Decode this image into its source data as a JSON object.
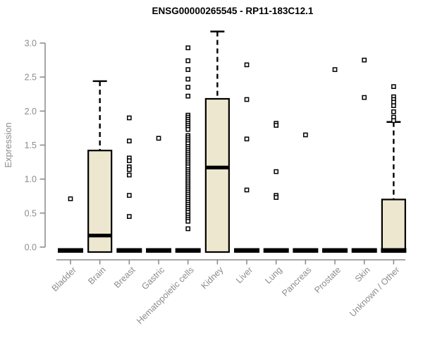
{
  "chart": {
    "title": "ENSG00000265545 - RP11-183C12.1",
    "ylabel": "Expression"
  },
  "chart_data": {
    "type": "boxplot",
    "title": "ENSG00000265545 - RP11-183C12.1",
    "xlabel": "",
    "ylabel": "Expression",
    "ylim": [
      0.0,
      3.2
    ],
    "yticks": [
      0.0,
      0.5,
      1.0,
      1.5,
      2.0,
      2.5,
      3.0
    ],
    "grid": false,
    "legend": "none",
    "categories": [
      "Bladder",
      "Brain",
      "Breast",
      "Gastric",
      "Hematopoietic cells",
      "Kidney",
      "Liver",
      "Lung",
      "Pancreas",
      "Prostate",
      "Skin",
      "Unknown / Other"
    ],
    "boxes": [
      {
        "name": "Bladder",
        "q1": 0,
        "median": 0,
        "q3": 0,
        "whisker_low": 0,
        "whisker_high": 0,
        "outliers": [
          0.71
        ]
      },
      {
        "name": "Brain",
        "q1": 0,
        "median": 0.17,
        "q3": 1.42,
        "whisker_low": 0,
        "whisker_high": 2.44,
        "outliers": []
      },
      {
        "name": "Breast",
        "q1": 0,
        "median": 0,
        "q3": 0,
        "whisker_low": 0,
        "whisker_high": 0,
        "outliers": [
          1.9,
          1.56,
          1.31,
          1.27,
          1.18,
          1.14,
          1.06,
          0.76,
          0.45
        ]
      },
      {
        "name": "Gastric",
        "q1": 0,
        "median": 0,
        "q3": 0,
        "whisker_low": 0,
        "whisker_high": 0,
        "outliers": [
          1.6
        ]
      },
      {
        "name": "Hematopoietic cells",
        "q1": 0,
        "median": 0,
        "q3": 0,
        "whisker_low": 0,
        "whisker_high": 0,
        "outliers": [
          2.93,
          2.74,
          2.61,
          2.47,
          2.35,
          2.22,
          1.94,
          1.91,
          1.88,
          1.85,
          1.82,
          1.79,
          1.76,
          1.73,
          1.64,
          1.61,
          1.58,
          1.55,
          1.52,
          1.48,
          1.45,
          1.42,
          1.39,
          1.36,
          1.33,
          1.3,
          1.27,
          1.24,
          1.21,
          1.18,
          1.14,
          1.11,
          1.08,
          1.05,
          1.02,
          0.99,
          0.96,
          0.93,
          0.9,
          0.87,
          0.84,
          0.81,
          0.78,
          0.75,
          0.72,
          0.69,
          0.66,
          0.63,
          0.6,
          0.57,
          0.54,
          0.51,
          0.47,
          0.44,
          0.41,
          0.38,
          0.27
        ]
      },
      {
        "name": "Kidney",
        "q1": 0,
        "median": 1.17,
        "q3": 2.18,
        "whisker_low": 0,
        "whisker_high": 3.17,
        "outliers": []
      },
      {
        "name": "Liver",
        "q1": 0,
        "median": 0,
        "q3": 0,
        "whisker_low": 0,
        "whisker_high": 0,
        "outliers": [
          2.68,
          2.17,
          1.59,
          0.84
        ]
      },
      {
        "name": "Lung",
        "q1": 0,
        "median": 0,
        "q3": 0,
        "whisker_low": 0,
        "whisker_high": 0,
        "outliers": [
          1.82,
          1.79,
          1.11,
          0.76,
          0.73
        ]
      },
      {
        "name": "Pancreas",
        "q1": 0,
        "median": 0,
        "q3": 0,
        "whisker_low": 0,
        "whisker_high": 0,
        "outliers": [
          1.65
        ]
      },
      {
        "name": "Prostate",
        "q1": 0,
        "median": 0,
        "q3": 0,
        "whisker_low": 0,
        "whisker_high": 0,
        "outliers": [
          2.61
        ]
      },
      {
        "name": "Skin",
        "q1": 0,
        "median": 0,
        "q3": 0,
        "whisker_low": 0,
        "whisker_high": 0,
        "outliers": [
          2.75,
          2.2
        ]
      },
      {
        "name": "Unknown / Other",
        "q1": 0,
        "median": 0.02,
        "q3": 0.7,
        "whisker_low": 0,
        "whisker_high": 1.84,
        "outliers": [
          2.36,
          2.21,
          2.17,
          2.13,
          2.08,
          1.99,
          1.91,
          1.86
        ]
      }
    ],
    "colors": {
      "box_fill": "#ece7ce",
      "box_stroke": "#000000",
      "median": "#000000",
      "whisker": "#000000",
      "outlier_stroke": "#000000",
      "axis": "#888888",
      "tick_label": "#8c8c8c",
      "title": "#000000",
      "background": "#ffffff"
    }
  }
}
